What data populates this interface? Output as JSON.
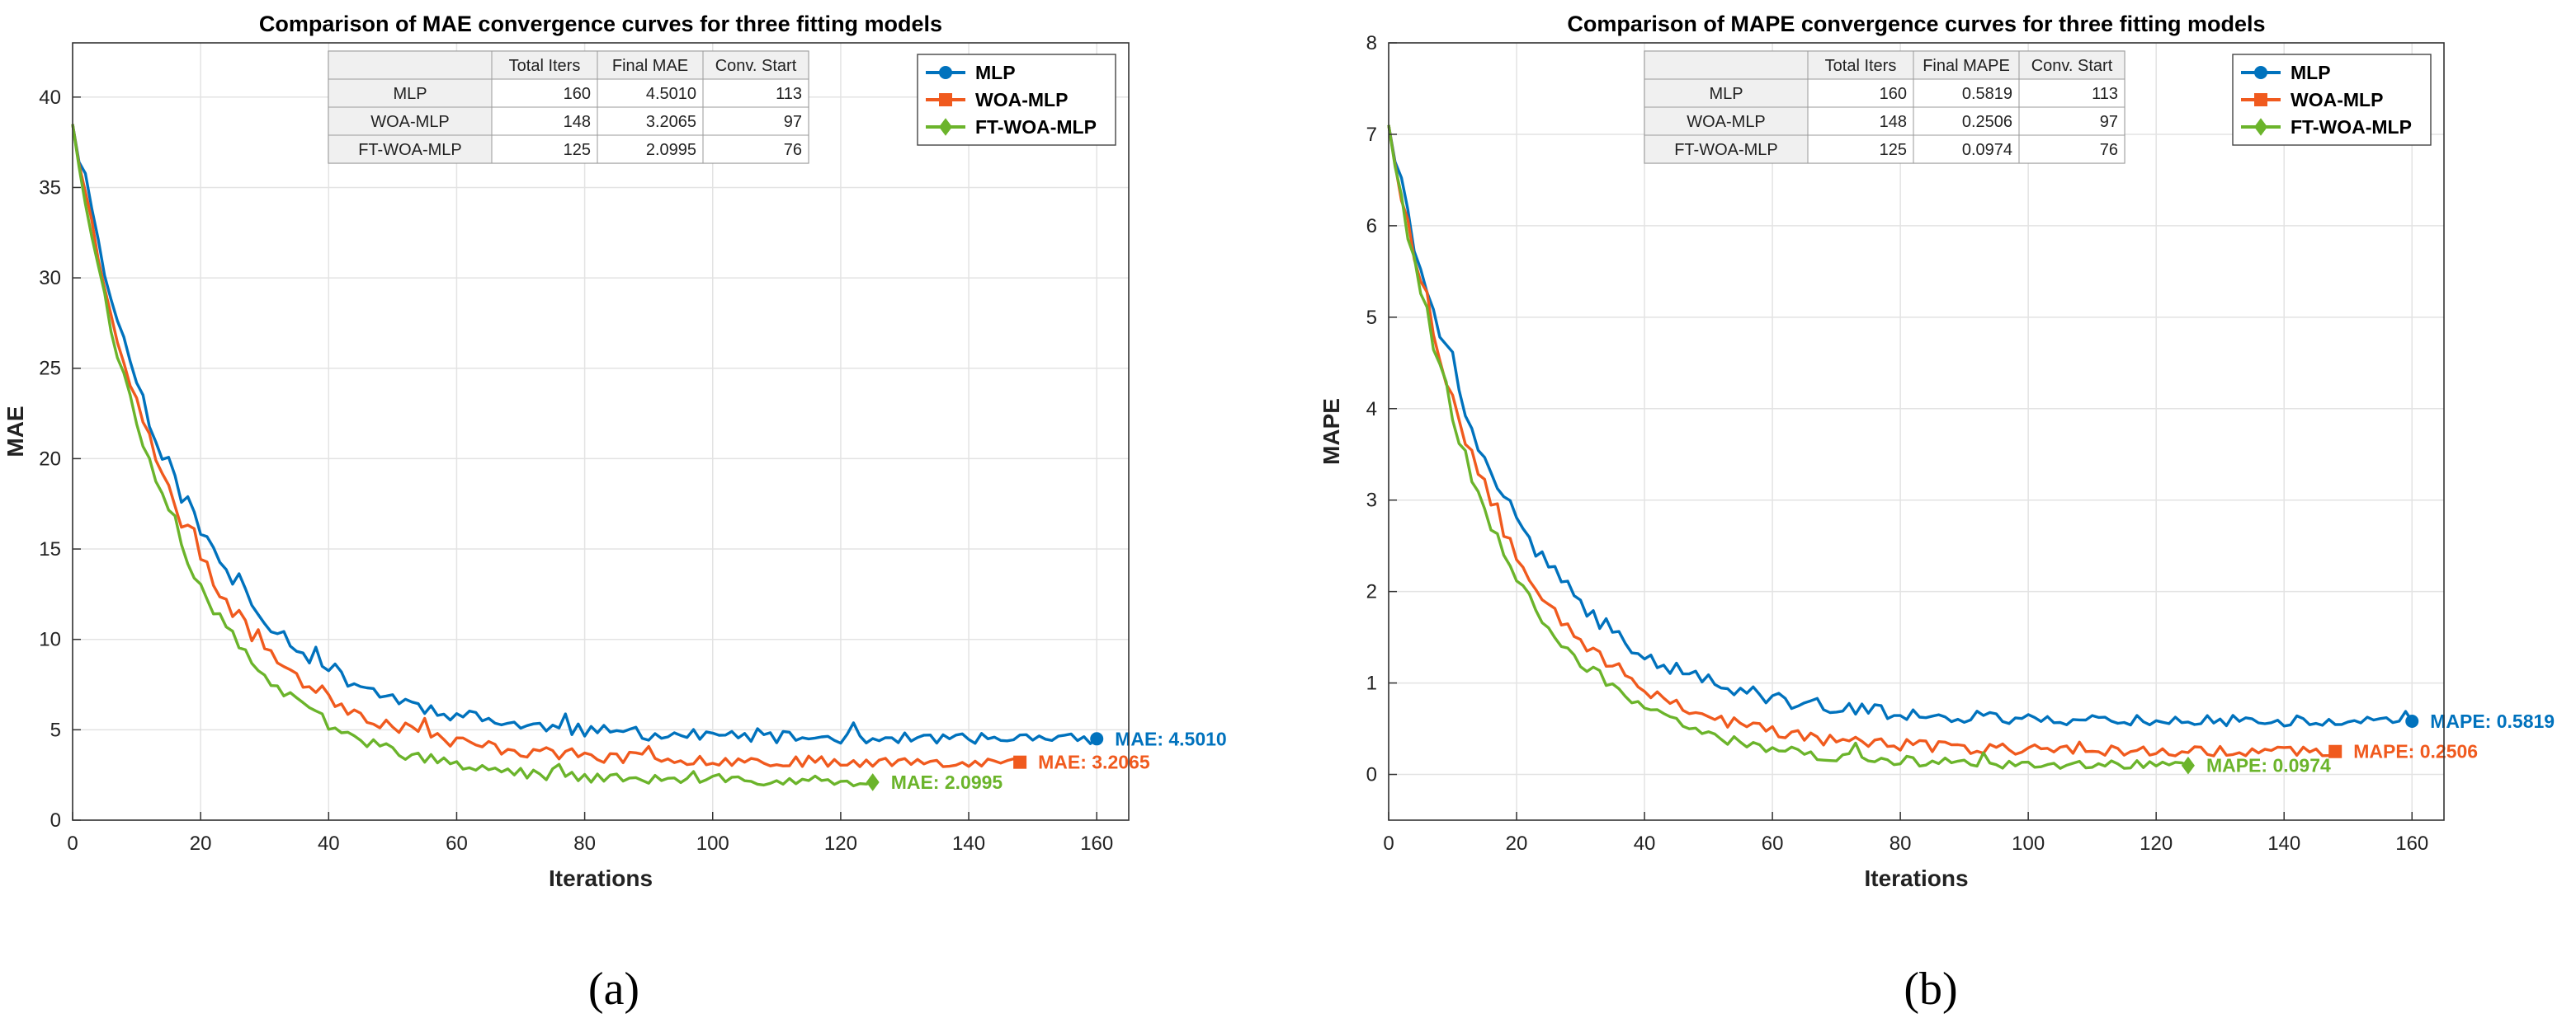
{
  "colors": {
    "MLP": "#0072BD",
    "WOA-MLP": "#F05A1E",
    "FT-WOA-MLP": "#6BB42B",
    "grid": "#e3e3e3",
    "axis": "#333333"
  },
  "chart_data": [
    {
      "type": "line",
      "caption": "(a)",
      "title": "Comparison of MAE convergence curves for three fitting models",
      "xlabel": "Iterations",
      "ylabel": "MAE",
      "xlim": [
        0,
        165
      ],
      "ylim": [
        0,
        43
      ],
      "xticks": [
        0,
        20,
        40,
        60,
        80,
        100,
        120,
        140,
        160
      ],
      "yticks": [
        0,
        5,
        10,
        15,
        20,
        25,
        30,
        35,
        40
      ],
      "grid": true,
      "legend_position": "top-right",
      "legend": [
        "MLP",
        "WOA-MLP",
        "FT-WOA-MLP"
      ],
      "series": [
        {
          "name": "MLP",
          "marker": "circle",
          "start": 38.5,
          "final": 4.501,
          "iters": 160,
          "decay": 18.5,
          "noise": 0.6,
          "end_label": "MAE: 4.5010",
          "seed": 11
        },
        {
          "name": "WOA-MLP",
          "marker": "square",
          "start": 38.5,
          "final": 3.2065,
          "iters": 148,
          "decay": 17.5,
          "noise": 0.55,
          "end_label": "MAE: 3.2065",
          "seed": 23
        },
        {
          "name": "FT-WOA-MLP",
          "marker": "diamond",
          "start": 38.5,
          "final": 2.0995,
          "iters": 125,
          "decay": 16.5,
          "noise": 0.45,
          "end_label": "MAE: 2.0995",
          "seed": 37
        }
      ],
      "table": {
        "headers": [
          "",
          "Total Iters",
          "Final MAE",
          "Conv. Start"
        ],
        "rows": [
          [
            "MLP",
            "160",
            "4.5010",
            "113"
          ],
          [
            "WOA-MLP",
            "148",
            "3.2065",
            "97"
          ],
          [
            "FT-WOA-MLP",
            "125",
            "2.0995",
            "76"
          ]
        ]
      }
    },
    {
      "type": "line",
      "caption": "(b)",
      "title": "Comparison of MAPE convergence curves for three fitting models",
      "xlabel": "Iterations",
      "ylabel": "MAPE",
      "xlim": [
        0,
        165
      ],
      "ylim": [
        -0.5,
        8
      ],
      "xticks": [
        0,
        20,
        40,
        60,
        80,
        100,
        120,
        140,
        160
      ],
      "yticks": [
        0,
        1,
        2,
        3,
        4,
        5,
        6,
        7,
        8
      ],
      "grid": true,
      "legend_position": "top-right",
      "legend": [
        "MLP",
        "WOA-MLP",
        "FT-WOA-MLP"
      ],
      "series": [
        {
          "name": "MLP",
          "marker": "circle",
          "start": 7.1,
          "final": 0.5819,
          "iters": 160,
          "decay": 18.5,
          "noise": 0.12,
          "end_label": "MAPE: 0.5819",
          "seed": 41
        },
        {
          "name": "WOA-MLP",
          "marker": "square",
          "start": 7.1,
          "final": 0.2506,
          "iters": 148,
          "decay": 17.5,
          "noise": 0.11,
          "end_label": "MAPE: 0.2506",
          "seed": 53
        },
        {
          "name": "FT-WOA-MLP",
          "marker": "diamond",
          "start": 7.1,
          "final": 0.0974,
          "iters": 125,
          "decay": 16.5,
          "noise": 0.09,
          "end_label": "MAPE: 0.0974",
          "seed": 67
        }
      ],
      "table": {
        "headers": [
          "",
          "Total Iters",
          "Final MAPE",
          "Conv. Start"
        ],
        "rows": [
          [
            "MLP",
            "160",
            "0.5819",
            "113"
          ],
          [
            "WOA-MLP",
            "148",
            "0.2506",
            "97"
          ],
          [
            "FT-WOA-MLP",
            "125",
            "0.0974",
            "76"
          ]
        ]
      }
    }
  ]
}
